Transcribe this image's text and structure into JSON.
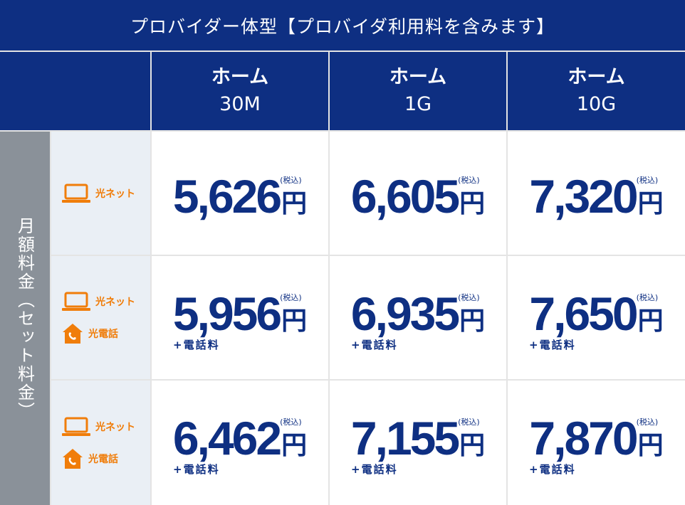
{
  "title": "プロバイダー体型【プロバイダ利用料を含みます】",
  "side_label": "月額料金（セット料金）",
  "plans": [
    {
      "name": "ホーム",
      "speed": "30M"
    },
    {
      "name": "ホーム",
      "speed": "1G"
    },
    {
      "name": "ホーム",
      "speed": "10G"
    }
  ],
  "service_labels": {
    "net": "光ネット",
    "phone": "光電話"
  },
  "currency": "円",
  "tax_note": "(税込)",
  "extra_note": "+電話料",
  "rows": [
    {
      "services": [
        "net"
      ],
      "prices": [
        "5,626",
        "6,605",
        "7,320"
      ],
      "extra": false
    },
    {
      "services": [
        "net",
        "phone"
      ],
      "prices": [
        "5,956",
        "6,935",
        "7,650"
      ],
      "extra": true
    },
    {
      "services": [
        "net",
        "phone"
      ],
      "prices": [
        "6,462",
        "7,155",
        "7,870"
      ],
      "extra": true
    }
  ],
  "colors": {
    "navy": "#0e2f82",
    "orange": "#f07d0a",
    "gray": "#8a9199",
    "light_blue": "#eaeff5"
  }
}
